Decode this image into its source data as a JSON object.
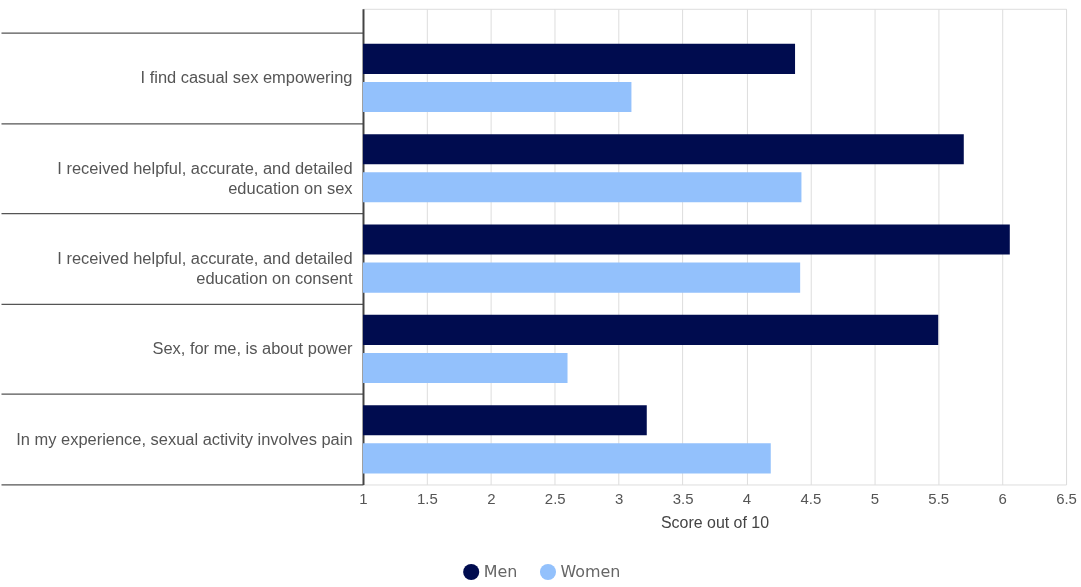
{
  "chart_data": {
    "type": "bar",
    "orientation": "horizontal",
    "categories": [
      "I find casual sex empowering",
      "I received helpful, accurate, and detailed education on sex",
      "I received helpful, accurate, and detailed education on consent",
      "Sex, for me, is about power",
      "In my experience, sexual activity involves pain"
    ],
    "series": [
      {
        "name": "Men",
        "color": "#000c4f",
        "values": [
          4.38,
          5.7,
          6.06,
          5.5,
          3.22
        ]
      },
      {
        "name": "Women",
        "color": "#93c1fc",
        "values": [
          3.1,
          4.43,
          4.42,
          2.6,
          4.19
        ]
      }
    ],
    "xlabel": "Score out of 10",
    "xlim": [
      1,
      6.5
    ],
    "xticks": [
      1,
      1.5,
      2,
      2.5,
      3,
      3.5,
      4,
      4.5,
      5,
      5.5,
      6,
      6.5
    ],
    "grid": "x",
    "legend": "bottom"
  }
}
